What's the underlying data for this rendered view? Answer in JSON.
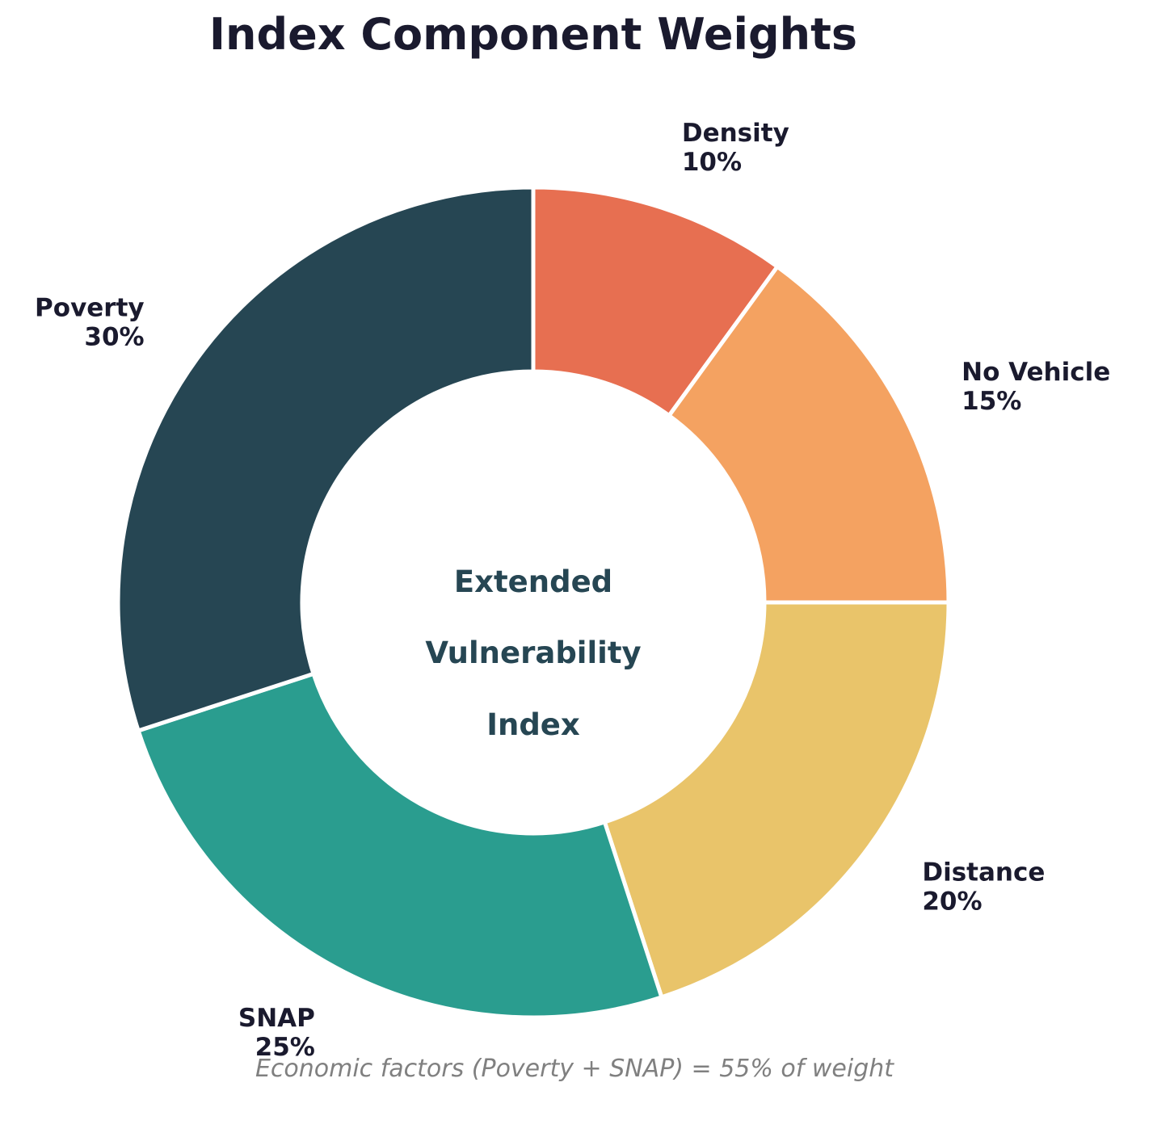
{
  "chart_data": {
    "type": "pie",
    "variant": "donut",
    "title": "Index Component Weights",
    "center_text": [
      "Extended",
      "Vulnerability",
      "Index"
    ],
    "start_angle": "top, clockwise",
    "slices": [
      {
        "label": "Density",
        "value": 10,
        "value_label": "10%",
        "color": "#e76f51"
      },
      {
        "label": "No Vehicle",
        "value": 15,
        "value_label": "15%",
        "color": "#f4a261"
      },
      {
        "label": "Distance",
        "value": 20,
        "value_label": "20%",
        "color": "#e9c46a"
      },
      {
        "label": "SNAP",
        "value": 25,
        "value_label": "25%",
        "color": "#2a9d8f"
      },
      {
        "label": "Poverty",
        "value": 30,
        "value_label": "30%",
        "color": "#264653"
      }
    ],
    "annotation": "Economic factors (Poverty + SNAP) = 55% of weight"
  }
}
